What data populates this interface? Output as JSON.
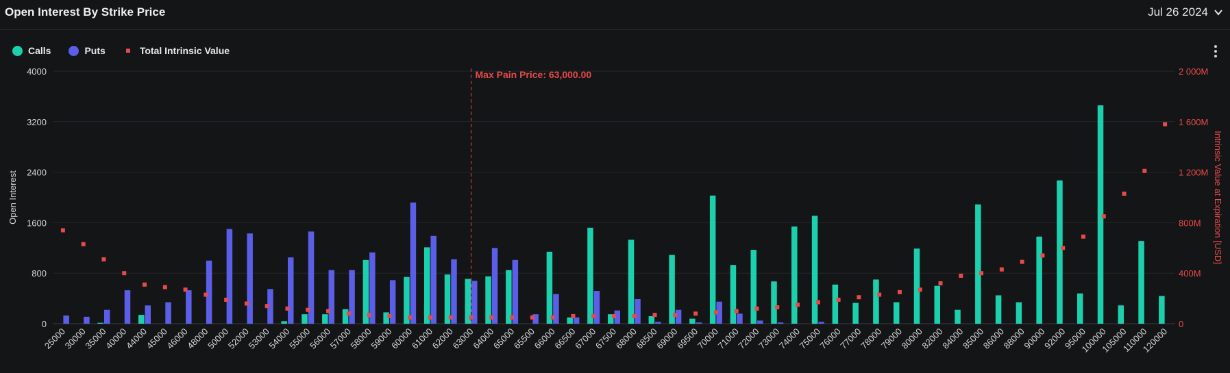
{
  "header": {
    "title": "Open Interest By Strike Price",
    "date": "Jul 26 2024"
  },
  "legend": {
    "calls": "Calls",
    "puts": "Puts",
    "intrinsic": "Total Intrinsic Value"
  },
  "colors": {
    "calls": "#1ccfad",
    "puts": "#5b5ee6",
    "intrinsic": "#e84a4a",
    "grid": "#26272b",
    "axis_text": "#d6d6d6"
  },
  "icons": {
    "more": "more-vertical-icon",
    "chevron": "chevron-down-icon"
  },
  "chart_data": {
    "type": "bar",
    "title": "Open Interest By Strike Price",
    "ylabel": "Open Interest",
    "y2label": "Intrinsic Value at Expiration [USD]",
    "ylim": [
      0,
      4000
    ],
    "y2lim": [
      0,
      2000
    ],
    "yticks": [
      "0",
      "800",
      "1600",
      "2400",
      "3200",
      "4000"
    ],
    "y2ticks": [
      "0",
      "400M",
      "800M",
      "1 200M",
      "1 600M",
      "2 000M"
    ],
    "grid": true,
    "legend_position": "top-left",
    "max_pain_label": "Max Pain Price: 63,000.00",
    "max_pain_category": "63000",
    "categories": [
      "25000",
      "30000",
      "35000",
      "40000",
      "44000",
      "45000",
      "46000",
      "48000",
      "50000",
      "52000",
      "53000",
      "54000",
      "55000",
      "56000",
      "57000",
      "58000",
      "59000",
      "60000",
      "61000",
      "62000",
      "63000",
      "64000",
      "65000",
      "65500",
      "66000",
      "66500",
      "67000",
      "67500",
      "68000",
      "68500",
      "69000",
      "69500",
      "70000",
      "71000",
      "72000",
      "73000",
      "74000",
      "75000",
      "76000",
      "77000",
      "78000",
      "79000",
      "80000",
      "82000",
      "84000",
      "85000",
      "86000",
      "88000",
      "90000",
      "92000",
      "95000",
      "100000",
      "105000",
      "110000",
      "120000"
    ],
    "series": [
      {
        "name": "Calls",
        "values": [
          0,
          0,
          15,
          0,
          140,
          0,
          0,
          0,
          0,
          0,
          0,
          40,
          150,
          150,
          230,
          1010,
          180,
          740,
          1210,
          780,
          710,
          750,
          850,
          0,
          1140,
          100,
          1520,
          150,
          1330,
          120,
          1090,
          80,
          2030,
          930,
          1170,
          670,
          1540,
          1710,
          620,
          330,
          700,
          340,
          1190,
          600,
          220,
          1890,
          450,
          340,
          1380,
          2270,
          480,
          3460,
          290,
          1310,
          440
        ]
      },
      {
        "name": "Puts",
        "values": [
          130,
          110,
          220,
          530,
          290,
          340,
          530,
          1000,
          1500,
          1430,
          550,
          1050,
          1460,
          850,
          850,
          1130,
          690,
          1920,
          1390,
          1020,
          680,
          1200,
          1010,
          150,
          470,
          100,
          520,
          210,
          390,
          30,
          220,
          20,
          350,
          160,
          50,
          20,
          0,
          30,
          0,
          0,
          0,
          0,
          0,
          0,
          0,
          0,
          0,
          0,
          0,
          0,
          0,
          0,
          0,
          0,
          0
        ]
      },
      {
        "name": "Total Intrinsic Value",
        "axis": "right",
        "unit": "M USD",
        "values": [
          740,
          630,
          510,
          400,
          310,
          290,
          270,
          230,
          190,
          160,
          140,
          120,
          110,
          100,
          80,
          70,
          60,
          50,
          50,
          50,
          50,
          50,
          50,
          50,
          50,
          60,
          60,
          60,
          60,
          70,
          70,
          80,
          90,
          100,
          120,
          130,
          150,
          170,
          190,
          210,
          230,
          250,
          270,
          320,
          380,
          400,
          430,
          490,
          540,
          600,
          690,
          850,
          1030,
          1210,
          1580
        ]
      }
    ]
  }
}
